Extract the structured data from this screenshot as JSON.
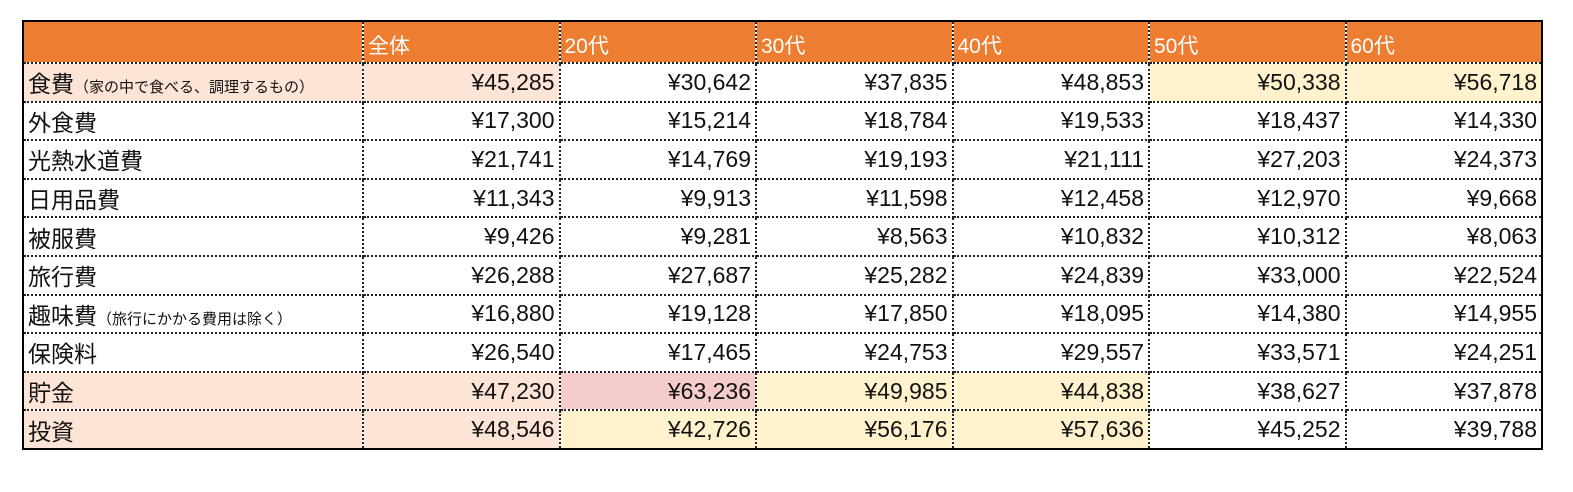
{
  "table": {
    "header": [
      "全体",
      "20代",
      "30代",
      "40代",
      "50代",
      "60代"
    ],
    "rows": [
      {
        "label": "食費",
        "note": "（家の中で食べる、調理するもの）",
        "cells": [
          "¥45,285",
          "¥30,642",
          "¥37,835",
          "¥48,853",
          "¥50,338",
          "¥56,718"
        ]
      },
      {
        "label": "外食費",
        "cells": [
          "¥17,300",
          "¥15,214",
          "¥18,784",
          "¥19,533",
          "¥18,437",
          "¥14,330"
        ]
      },
      {
        "label": "光熱水道費",
        "cells": [
          "¥21,741",
          "¥14,769",
          "¥19,193",
          "¥21,111",
          "¥27,203",
          "¥24,373"
        ]
      },
      {
        "label": "日用品費",
        "cells": [
          "¥11,343",
          "¥9,913",
          "¥11,598",
          "¥12,458",
          "¥12,970",
          "¥9,668"
        ]
      },
      {
        "label": "被服費",
        "cells": [
          "¥9,426",
          "¥9,281",
          "¥8,563",
          "¥10,832",
          "¥10,312",
          "¥8,063"
        ]
      },
      {
        "label": "旅行費",
        "cells": [
          "¥26,288",
          "¥27,687",
          "¥25,282",
          "¥24,839",
          "¥33,000",
          "¥22,524"
        ]
      },
      {
        "label": "趣味費",
        "note": "（旅行にかかる費用は除く）",
        "cells": [
          "¥16,880",
          "¥19,128",
          "¥17,850",
          "¥18,095",
          "¥14,380",
          "¥14,955"
        ]
      },
      {
        "label": "保険料",
        "cells": [
          "¥26,540",
          "¥17,465",
          "¥24,753",
          "¥29,557",
          "¥33,571",
          "¥24,251"
        ]
      },
      {
        "label": "貯金",
        "cells": [
          "¥47,230",
          "¥63,236",
          "¥49,985",
          "¥44,838",
          "¥38,627",
          "¥37,878"
        ]
      },
      {
        "label": "投資",
        "cells": [
          "¥48,546",
          "¥42,726",
          "¥56,176",
          "¥57,636",
          "¥45,252",
          "¥39,788"
        ]
      }
    ]
  }
}
